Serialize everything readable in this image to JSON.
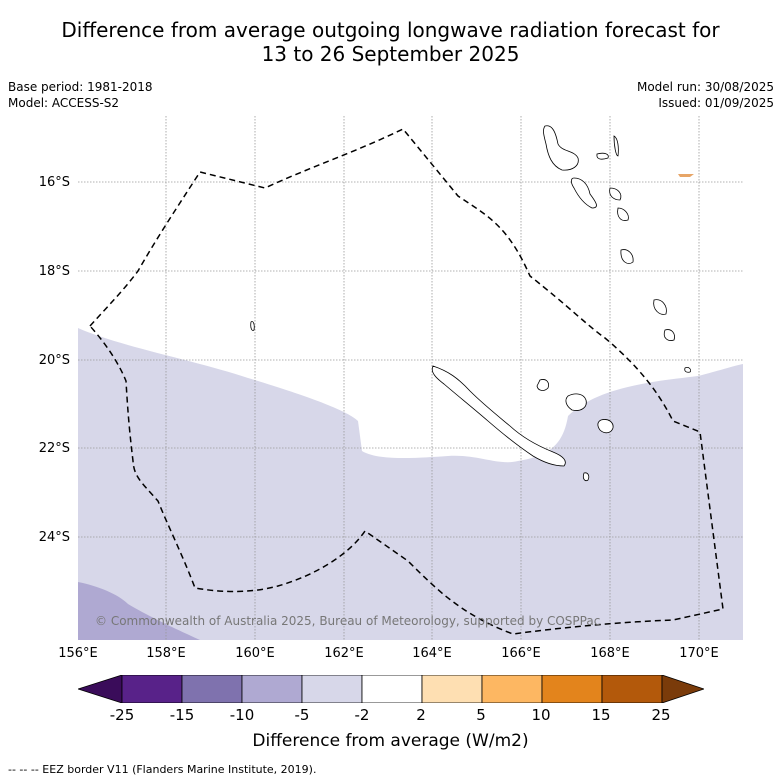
{
  "title_line1": "Difference from average outgoing longwave radiation forecast for",
  "title_line2": "13 to 26 September 2025",
  "meta": {
    "base_period": "Base period: 1981-2018",
    "model": "Model: ACCESS-S2",
    "model_run": "Model run: 30/08/2025",
    "issued": "Issued: 01/09/2025"
  },
  "map": {
    "lat_labels": [
      "16°S",
      "18°S",
      "20°S",
      "22°S",
      "24°S"
    ],
    "lon_labels": [
      "156°E",
      "158°E",
      "160°E",
      "162°E",
      "164°E",
      "166°E",
      "168°E",
      "170°E"
    ],
    "copyright": "© Commonwealth of Australia 2025, Bureau of Meteorology, supported by COSPPac",
    "colors": {
      "light_purple": "#d7d7e9",
      "mid_purple": "#afa9d2",
      "land_outline": "#000000",
      "eez_line": "#000000"
    }
  },
  "colorbar": {
    "title": "Difference from average (W/m2)",
    "labels": [
      "-25",
      "-15",
      "-10",
      "-5",
      "-2",
      "2",
      "5",
      "10",
      "15",
      "25"
    ],
    "colors": [
      "#3a0c5a",
      "#582289",
      "#7f72ae",
      "#afa9d2",
      "#d7d7e9",
      "#ffffff",
      "#fedfb2",
      "#fdb762",
      "#e3841c",
      "#b3590b",
      "#7a3b0a"
    ]
  },
  "footer": "-- -- -- EEZ border V11 (Flanders Marine Institute, 2019)."
}
